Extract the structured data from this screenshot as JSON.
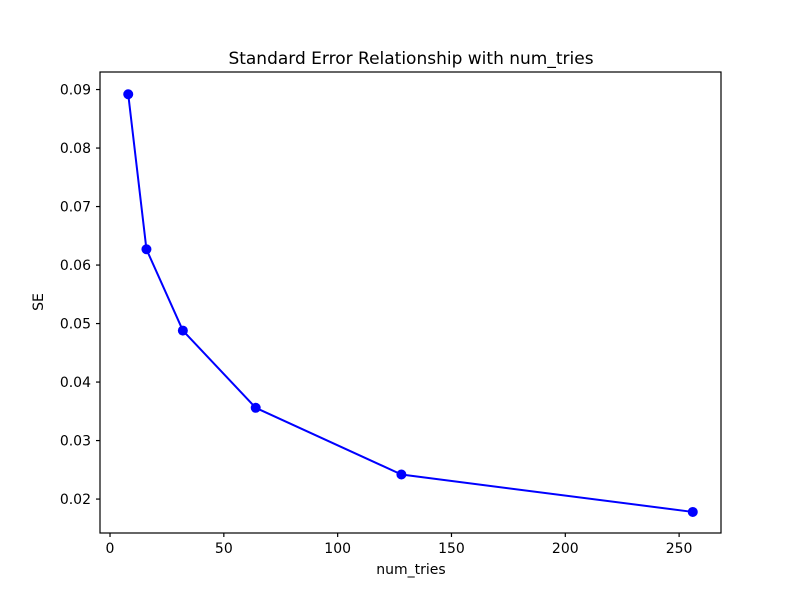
{
  "figure": {
    "background": "#ffffff",
    "text_color": "#000000",
    "axis_color": "#000000"
  },
  "chart_data": {
    "type": "line",
    "title": "Standard Error Relationship with num_tries",
    "xlabel": "num_tries",
    "ylabel": "SE",
    "series": [
      {
        "name": "SE",
        "color": "#0000ff",
        "marker": "circle",
        "x": [
          8,
          16,
          32,
          64,
          128,
          256
        ],
        "y": [
          0.0892,
          0.0627,
          0.0488,
          0.0356,
          0.0242,
          0.0178
        ]
      }
    ],
    "x_ticks": [
      0,
      50,
      100,
      150,
      200,
      250
    ],
    "y_ticks": [
      0.02,
      0.03,
      0.04,
      0.05,
      0.06,
      0.07,
      0.08,
      0.09
    ],
    "y_tick_decimals": 2,
    "xlim": [
      -4.4,
      268.4
    ],
    "ylim": [
      0.0142,
      0.093
    ],
    "grid": false,
    "legend": null
  }
}
